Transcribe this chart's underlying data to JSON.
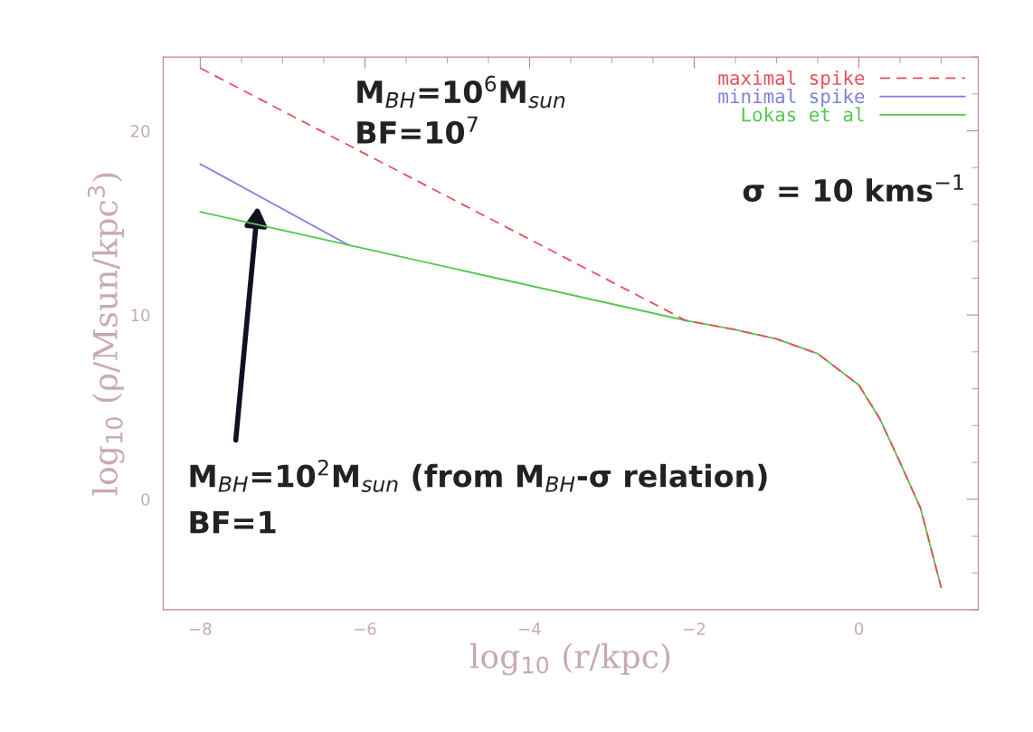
{
  "chart_data": {
    "type": "line",
    "xlabel": "log$_{10}$ (r/kpc)",
    "ylabel": "log$_{10}$ (ρ/Msun/kpc$^{3}$)",
    "xlim": [
      -8.45,
      1.45
    ],
    "xticks": [
      -8,
      -6,
      -4,
      -2,
      0
    ],
    "ylim": [
      -6,
      24
    ],
    "yticks": [
      0,
      10,
      20
    ],
    "grid": false,
    "legend": "top right",
    "line_style": "solid",
    "marker": "none",
    "series": [
      {
        "name": "maximal spike",
        "color": "#e8505a",
        "line_style": "dashed",
        "x": [
          -8,
          -2.1,
          -1.5,
          -1,
          -0.5,
          0,
          0.25,
          0.5,
          0.75,
          1.0
        ],
        "values": [
          23.4,
          9.7,
          9.2,
          8.7,
          7.9,
          6.2,
          4.4,
          2.0,
          -0.5,
          -4.8
        ]
      },
      {
        "name": "minimal spike",
        "color": "#8080e0",
        "x": [
          -8,
          -6.2
        ],
        "values": [
          18.2,
          13.8
        ]
      },
      {
        "name": "Lokas et al",
        "color": "#50c850",
        "x": [
          -8,
          -2.1,
          -1.5,
          -1,
          -0.5,
          0,
          0.25,
          0.5,
          0.75,
          1.0
        ],
        "values": [
          15.6,
          9.7,
          9.2,
          8.7,
          7.9,
          6.2,
          4.4,
          2.0,
          -0.5,
          -4.8
        ]
      }
    ],
    "annotations": [
      "M$_{BH}$=10$^{6}$M$_{sun}$",
      "BF=10$^{7}$",
      "σ = 10 kms$^{−1}$",
      "M$_{BH}$=10$^{2}$M$_{sun}$ (from M$_{BH}$-σ relation)",
      "BF=1"
    ]
  }
}
